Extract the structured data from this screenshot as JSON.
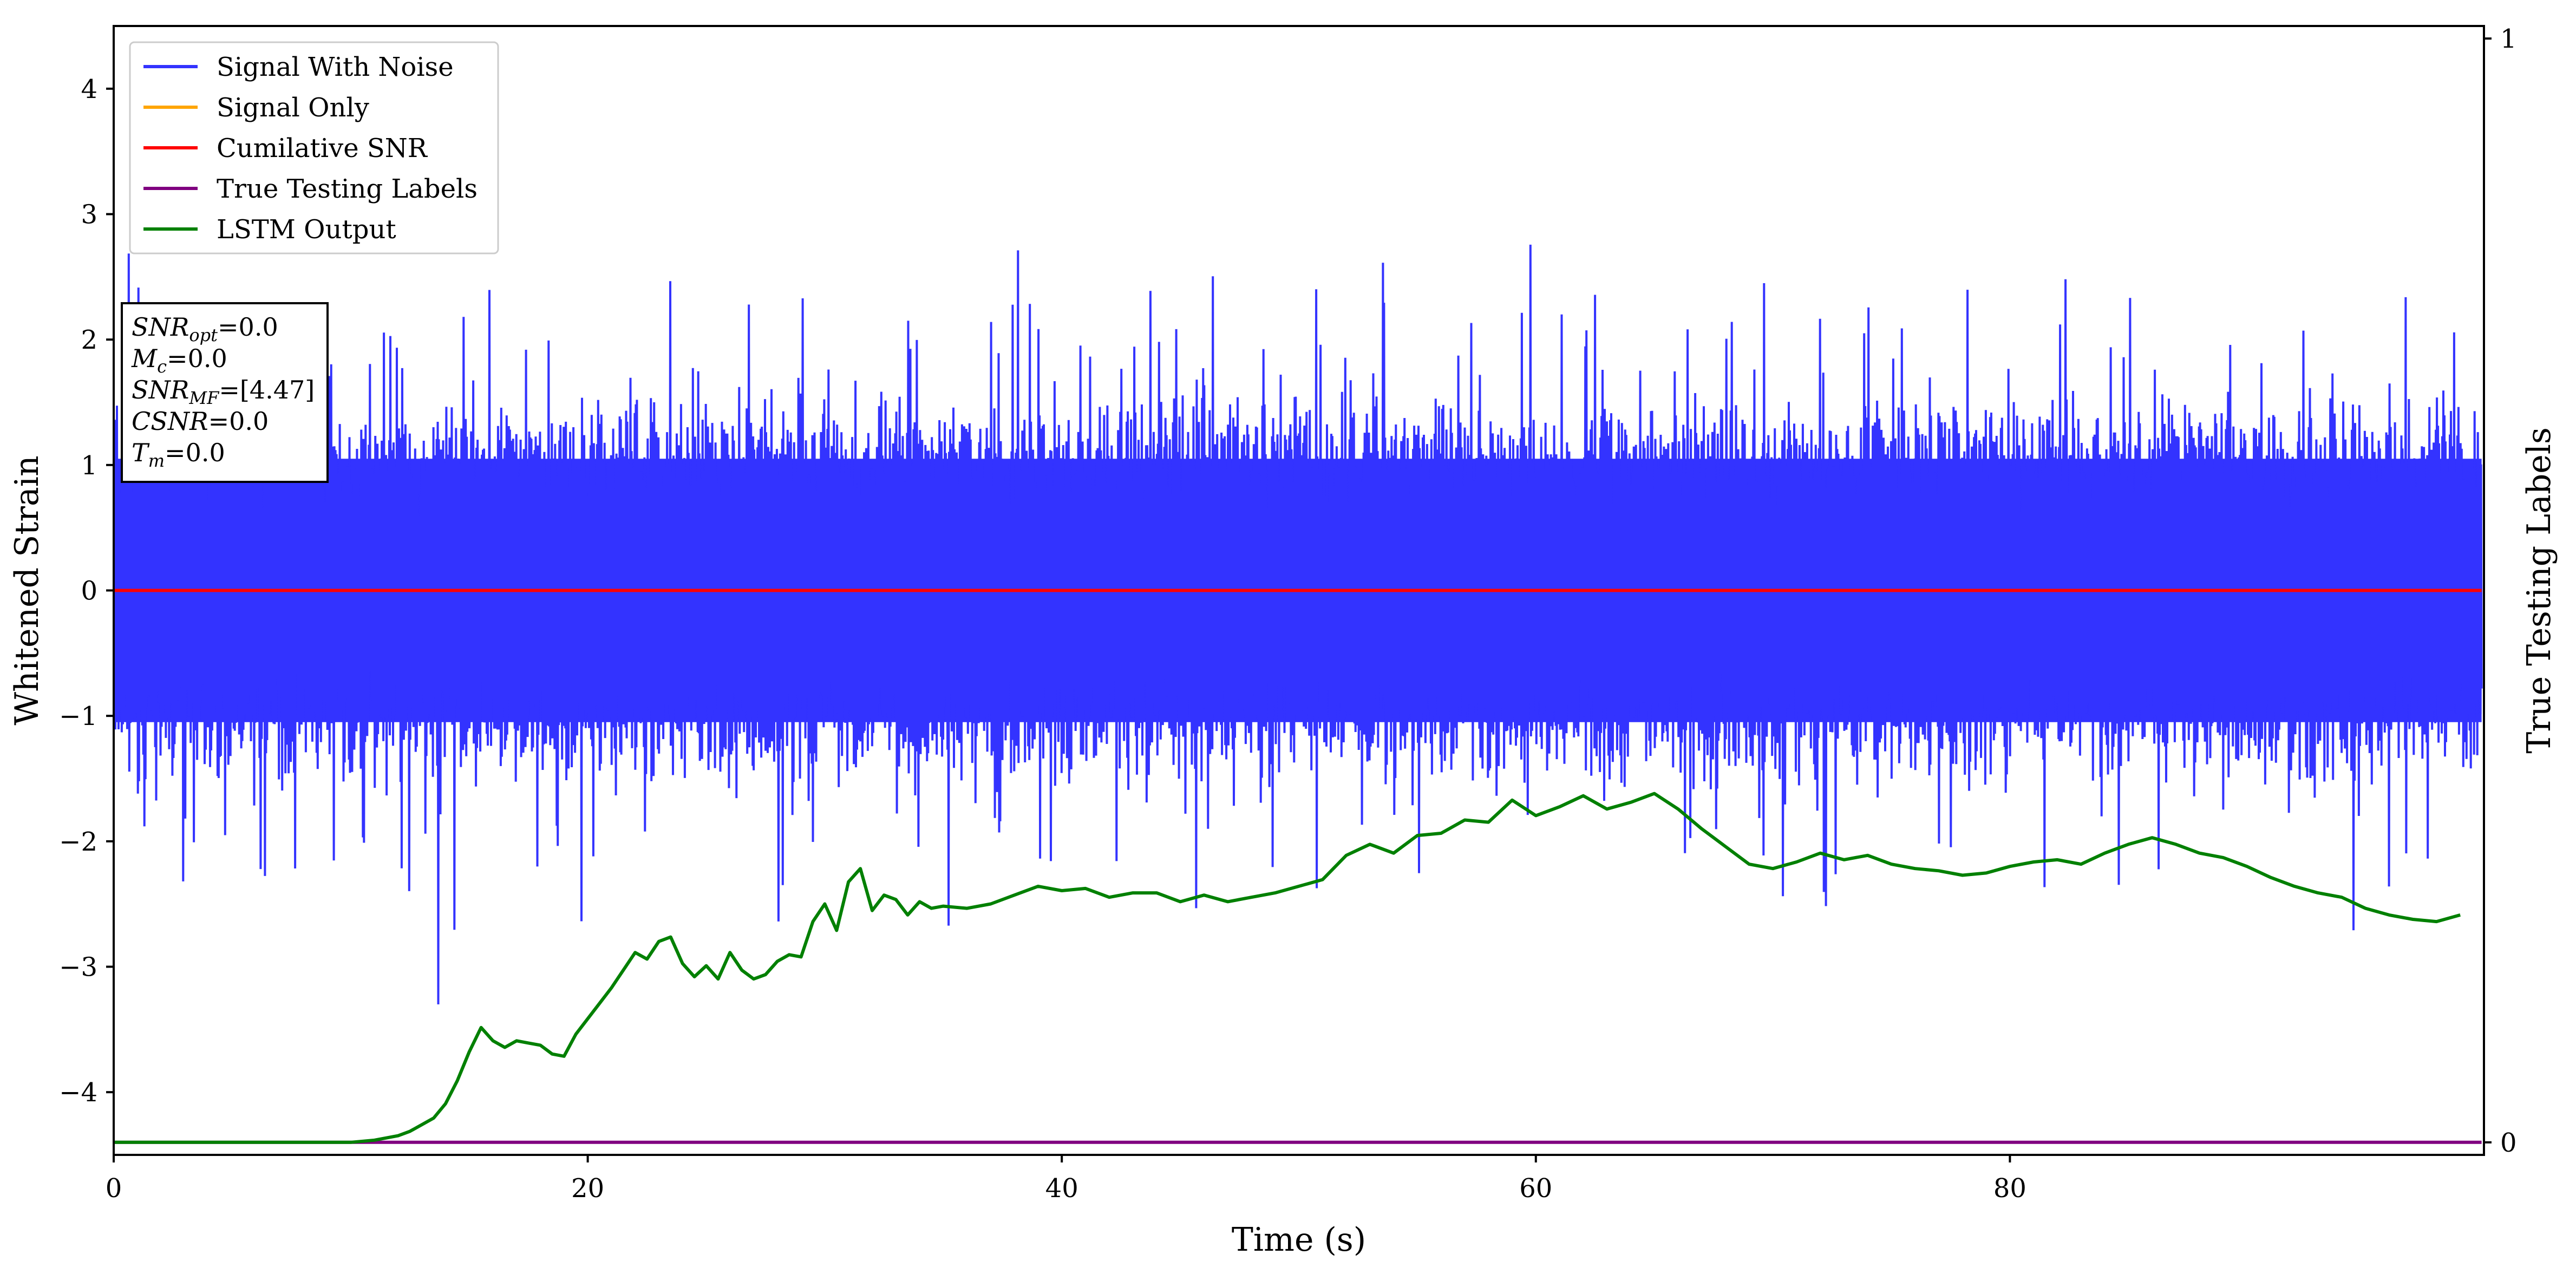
{
  "chart_data": {
    "type": "line",
    "xlabel": "Time (s)",
    "ylabel": "Whitened Strain",
    "ylabel_right": "True Testing Labels",
    "xlim": [
      0,
      100
    ],
    "ylim": [
      -4.5,
      4.5
    ],
    "ylim_right": [
      0,
      1
    ],
    "x_ticks": [
      0,
      20,
      40,
      60,
      80
    ],
    "y_ticks": [
      -4,
      -3,
      -2,
      -1,
      0,
      1,
      2,
      3,
      4
    ],
    "y_ticks_right": [
      0,
      1
    ],
    "grid": false,
    "legend_position": "top-left",
    "legend": [
      {
        "label": "Signal With Noise",
        "color": "#3333ff"
      },
      {
        "label": "Signal Only",
        "color": "#ffa500"
      },
      {
        "label": "Cumilative SNR",
        "color": "#ff0000"
      },
      {
        "label": "True Testing Labels",
        "color": "#800080"
      },
      {
        "label": "LSTM Output",
        "color": "#008000"
      }
    ],
    "annotation": [
      {
        "sym": "SNR",
        "sub": "opt",
        "val": "=0.0"
      },
      {
        "sym": "M",
        "sub": "c",
        "val": "=0.0"
      },
      {
        "sym": "SNR",
        "sub": "MF",
        "val": "=[4.47]"
      },
      {
        "sym": "CSNR",
        "sub": "",
        "val": "=0.0"
      },
      {
        "sym": "T",
        "sub": "m",
        "val": "=0.0"
      }
    ],
    "series": [
      {
        "name": "Signal With Noise",
        "color": "#3333ff",
        "description_of_shape": "dense noise",
        "approx_range": [
          -3.3,
          4.1
        ],
        "x_range": [
          0,
          99.9
        ]
      },
      {
        "name": "Signal Only",
        "color": "#ffa500",
        "x": [
          0,
          99.9
        ],
        "y": [
          0,
          0
        ]
      },
      {
        "name": "Cumilative SNR",
        "color": "#ff0000",
        "x": [
          0,
          99.9
        ],
        "y": [
          0,
          0
        ]
      },
      {
        "name": "True Testing Labels",
        "color": "#800080",
        "axis": "right",
        "x": [
          0,
          99.9
        ],
        "y": [
          0,
          0
        ]
      },
      {
        "name": "LSTM Output",
        "color": "#008000",
        "axis": "right",
        "x": [
          0,
          10,
          11,
          12,
          12.5,
          13,
          13.5,
          14,
          14.5,
          15,
          15.5,
          16,
          16.5,
          17,
          17.5,
          18,
          18.5,
          19,
          19.5,
          20,
          20.5,
          21,
          21.5,
          22,
          22.5,
          23,
          23.5,
          24,
          24.5,
          25,
          25.5,
          26,
          26.5,
          27,
          27.5,
          28,
          28.5,
          29,
          29.5,
          30,
          30.5,
          31,
          31.5,
          32,
          32.5,
          33,
          33.5,
          34,
          34.5,
          35,
          36,
          37,
          38,
          39,
          40,
          41,
          42,
          43,
          44,
          45,
          46,
          47,
          48,
          49,
          50,
          51,
          52,
          53,
          54,
          55,
          56,
          57,
          58,
          59,
          60,
          61,
          62,
          63,
          64,
          65,
          66,
          67,
          68,
          69,
          70,
          71,
          72,
          73,
          74,
          75,
          76,
          77,
          78,
          79,
          80,
          81,
          82,
          83,
          84,
          85,
          86,
          87,
          88,
          89,
          90,
          91,
          92,
          93,
          94,
          95,
          96,
          97,
          98,
          99
        ],
        "y": [
          0.0,
          0.0,
          0.002,
          0.006,
          0.01,
          0.016,
          0.022,
          0.035,
          0.056,
          0.082,
          0.104,
          0.092,
          0.086,
          0.092,
          0.09,
          0.088,
          0.08,
          0.078,
          0.098,
          0.112,
          0.126,
          0.14,
          0.156,
          0.172,
          0.166,
          0.182,
          0.186,
          0.162,
          0.15,
          0.16,
          0.148,
          0.172,
          0.156,
          0.148,
          0.152,
          0.164,
          0.17,
          0.168,
          0.2,
          0.216,
          0.192,
          0.236,
          0.248,
          0.21,
          0.224,
          0.22,
          0.206,
          0.218,
          0.212,
          0.214,
          0.212,
          0.216,
          0.224,
          0.232,
          0.228,
          0.23,
          0.222,
          0.226,
          0.226,
          0.218,
          0.224,
          0.218,
          0.222,
          0.226,
          0.232,
          0.238,
          0.26,
          0.27,
          0.262,
          0.278,
          0.28,
          0.292,
          0.29,
          0.31,
          0.296,
          0.304,
          0.314,
          0.302,
          0.308,
          0.316,
          0.302,
          0.284,
          0.268,
          0.252,
          0.248,
          0.254,
          0.262,
          0.256,
          0.26,
          0.252,
          0.248,
          0.246,
          0.242,
          0.244,
          0.25,
          0.254,
          0.256,
          0.252,
          0.262,
          0.27,
          0.276,
          0.27,
          0.262,
          0.258,
          0.25,
          0.24,
          0.232,
          0.226,
          0.222,
          0.212,
          0.206,
          0.202,
          0.2,
          0.206
        ]
      }
    ]
  }
}
